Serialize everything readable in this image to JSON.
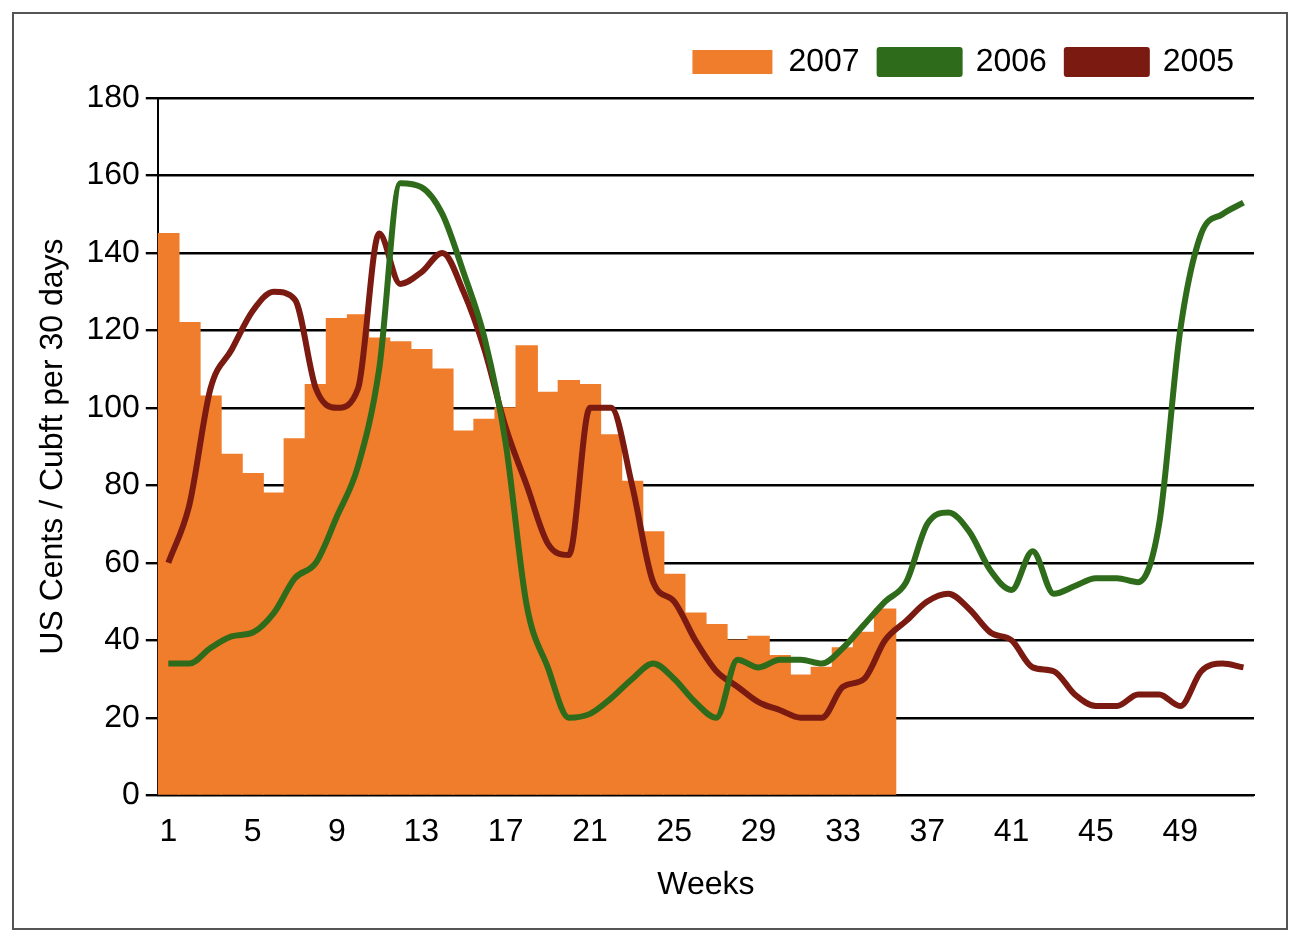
{
  "chart_data": {
    "type": "bar",
    "xlabel": "Weeks",
    "ylabel": "US Cents / Cubft per 30 days",
    "categories": [
      "1",
      null,
      null,
      null,
      "5",
      null,
      null,
      null,
      "9",
      null,
      null,
      null,
      "13",
      null,
      null,
      null,
      "17",
      null,
      null,
      null,
      "21",
      null,
      null,
      null,
      "25",
      null,
      null,
      null,
      "29",
      null,
      null,
      null,
      "33",
      null,
      null,
      null,
      "37",
      null,
      null,
      null,
      "41",
      null,
      null,
      null,
      "45",
      null,
      null,
      null,
      "49",
      null,
      null,
      null
    ],
    "series": [
      {
        "name": "2007",
        "color": "#ef7d2c",
        "values": [
          145,
          122,
          103,
          88,
          83,
          78,
          92,
          106,
          123,
          124,
          118,
          117,
          115,
          110,
          94,
          97,
          100,
          116,
          104,
          107,
          106,
          93,
          81,
          68,
          57,
          47,
          44,
          40,
          41,
          36,
          31,
          33,
          38,
          42,
          48,
          null,
          null,
          null,
          null,
          null,
          null,
          null,
          null,
          null,
          null,
          null,
          null,
          null,
          null,
          null,
          null,
          null
        ]
      },
      {
        "name": "2006",
        "type": "line",
        "color": "#2e6b1a",
        "values": [
          34,
          34,
          38,
          41,
          42,
          47,
          56,
          60,
          72,
          85,
          110,
          158,
          157,
          150,
          135,
          118,
          91,
          49,
          33,
          20,
          21,
          25,
          30,
          34,
          30,
          24,
          20,
          35,
          33,
          35,
          35,
          34,
          38,
          44,
          50,
          55,
          70,
          73,
          68,
          58,
          53,
          63,
          52,
          54,
          56,
          56,
          55,
          70,
          120,
          145,
          150,
          153
        ]
      },
      {
        "name": "2005",
        "type": "line",
        "color": "#7a1a10",
        "values": [
          60,
          75,
          105,
          115,
          125,
          130,
          128,
          105,
          100,
          105,
          145,
          132,
          135,
          140,
          130,
          115,
          95,
          80,
          65,
          62,
          100,
          100,
          80,
          55,
          50,
          40,
          32,
          28,
          24,
          22,
          20,
          20,
          28,
          30,
          40,
          45,
          50,
          52,
          48,
          42,
          40,
          33,
          32,
          26,
          23,
          23,
          26,
          26,
          23,
          32,
          34,
          33
        ]
      }
    ],
    "ylim": [
      0,
      180
    ],
    "yticks": [
      0,
      20,
      40,
      60,
      80,
      100,
      120,
      140,
      160,
      180
    ],
    "grid": "y",
    "legend": "top right",
    "marker": "none",
    "line_style": "solid"
  }
}
